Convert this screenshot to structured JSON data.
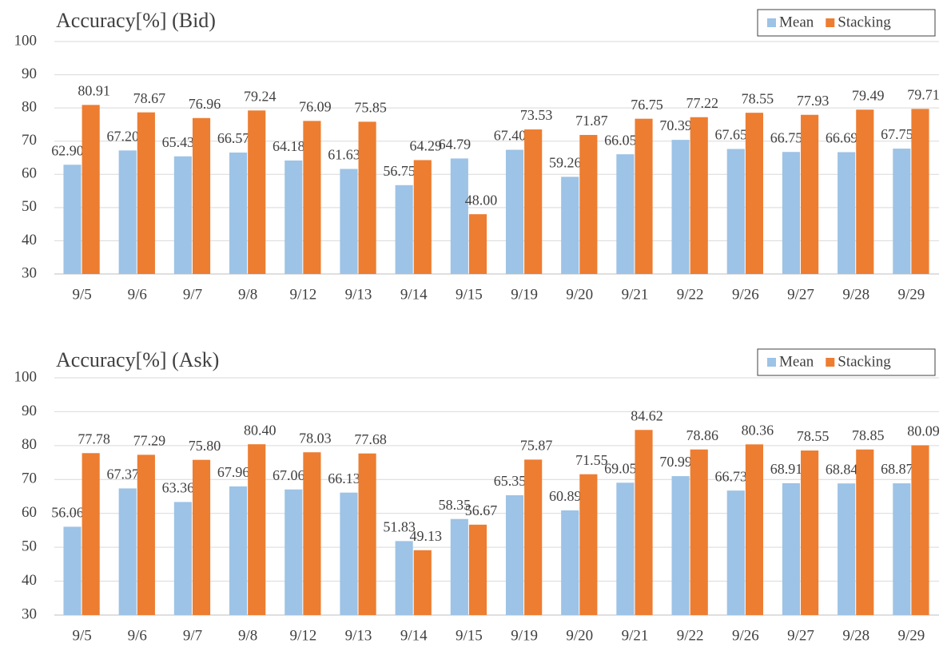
{
  "chart_data": [
    {
      "type": "bar",
      "title": "Accuracy[%]  (Bid)",
      "categories": [
        "9/5",
        "9/6",
        "9/7",
        "9/8",
        "9/12",
        "9/13",
        "9/14",
        "9/15",
        "9/19",
        "9/20",
        "9/21",
        "9/22",
        "9/26",
        "9/27",
        "9/28",
        "9/29"
      ],
      "series": [
        {
          "name": "Mean",
          "color": "#9dc3e6",
          "values": [
            62.9,
            67.2,
            65.43,
            66.57,
            64.18,
            61.63,
            56.75,
            64.79,
            67.4,
            59.26,
            66.05,
            70.39,
            67.65,
            66.75,
            66.69,
            67.75
          ],
          "value_labels": [
            "62.90",
            "67.20",
            "65.43",
            "66.57",
            "64.18",
            "61.63",
            "56.75",
            "64.79",
            "67.40",
            "59.26",
            "66.05",
            "70.39",
            "67.65",
            "66.75",
            "66.69",
            "67.75"
          ]
        },
        {
          "name": "Stacking",
          "color": "#ed7d31",
          "values": [
            80.91,
            78.67,
            76.96,
            79.24,
            76.09,
            75.85,
            64.29,
            48.0,
            73.53,
            71.87,
            76.75,
            77.22,
            78.55,
            77.93,
            79.49,
            79.71
          ],
          "value_labels": [
            "80.91",
            "78.67",
            "76.96",
            "79.24",
            "76.09",
            "75.85",
            "64.29",
            "48.00",
            "73.53",
            "71.87",
            "76.75",
            "77.22",
            "78.55",
            "77.93",
            "79.49",
            "79.71"
          ]
        }
      ],
      "ylim": [
        30,
        100
      ],
      "yticks": [
        30,
        40,
        50,
        60,
        70,
        80,
        90,
        100
      ],
      "grid": true,
      "legend": "top-right"
    },
    {
      "type": "bar",
      "title": "Accuracy[%]  (Ask)",
      "categories": [
        "9/5",
        "9/6",
        "9/7",
        "9/8",
        "9/12",
        "9/13",
        "9/14",
        "9/15",
        "9/19",
        "9/20",
        "9/21",
        "9/22",
        "9/26",
        "9/27",
        "9/28",
        "9/29"
      ],
      "series": [
        {
          "name": "Mean",
          "color": "#9dc3e6",
          "values": [
            56.06,
            67.37,
            63.36,
            67.96,
            67.06,
            66.13,
            51.83,
            58.35,
            65.35,
            60.89,
            69.05,
            70.99,
            66.73,
            68.91,
            68.84,
            68.87
          ],
          "value_labels": [
            "56.06",
            "67.37",
            "63.36",
            "67.96",
            "67.06",
            "66.13",
            "51.83",
            "58.35",
            "65.35",
            "60.89",
            "69.05",
            "70.99",
            "66.73",
            "68.91",
            "68.84",
            "68.87"
          ]
        },
        {
          "name": "Stacking",
          "color": "#ed7d31",
          "values": [
            77.78,
            77.29,
            75.8,
            80.4,
            78.03,
            77.68,
            49.13,
            56.67,
            75.87,
            71.55,
            84.62,
            78.86,
            80.36,
            78.55,
            78.85,
            80.09
          ],
          "value_labels": [
            "77.78",
            "77.29",
            "75.80",
            "80.40",
            "78.03",
            "77.68",
            "49.13",
            "56.67",
            "75.87",
            "71.55",
            "84.62",
            "78.86",
            "80.36",
            "78.55",
            "78.85",
            "80.09"
          ]
        }
      ],
      "ylim": [
        30,
        100
      ],
      "yticks": [
        30,
        40,
        50,
        60,
        70,
        80,
        90,
        100
      ],
      "grid": true,
      "legend": "top-right"
    }
  ]
}
